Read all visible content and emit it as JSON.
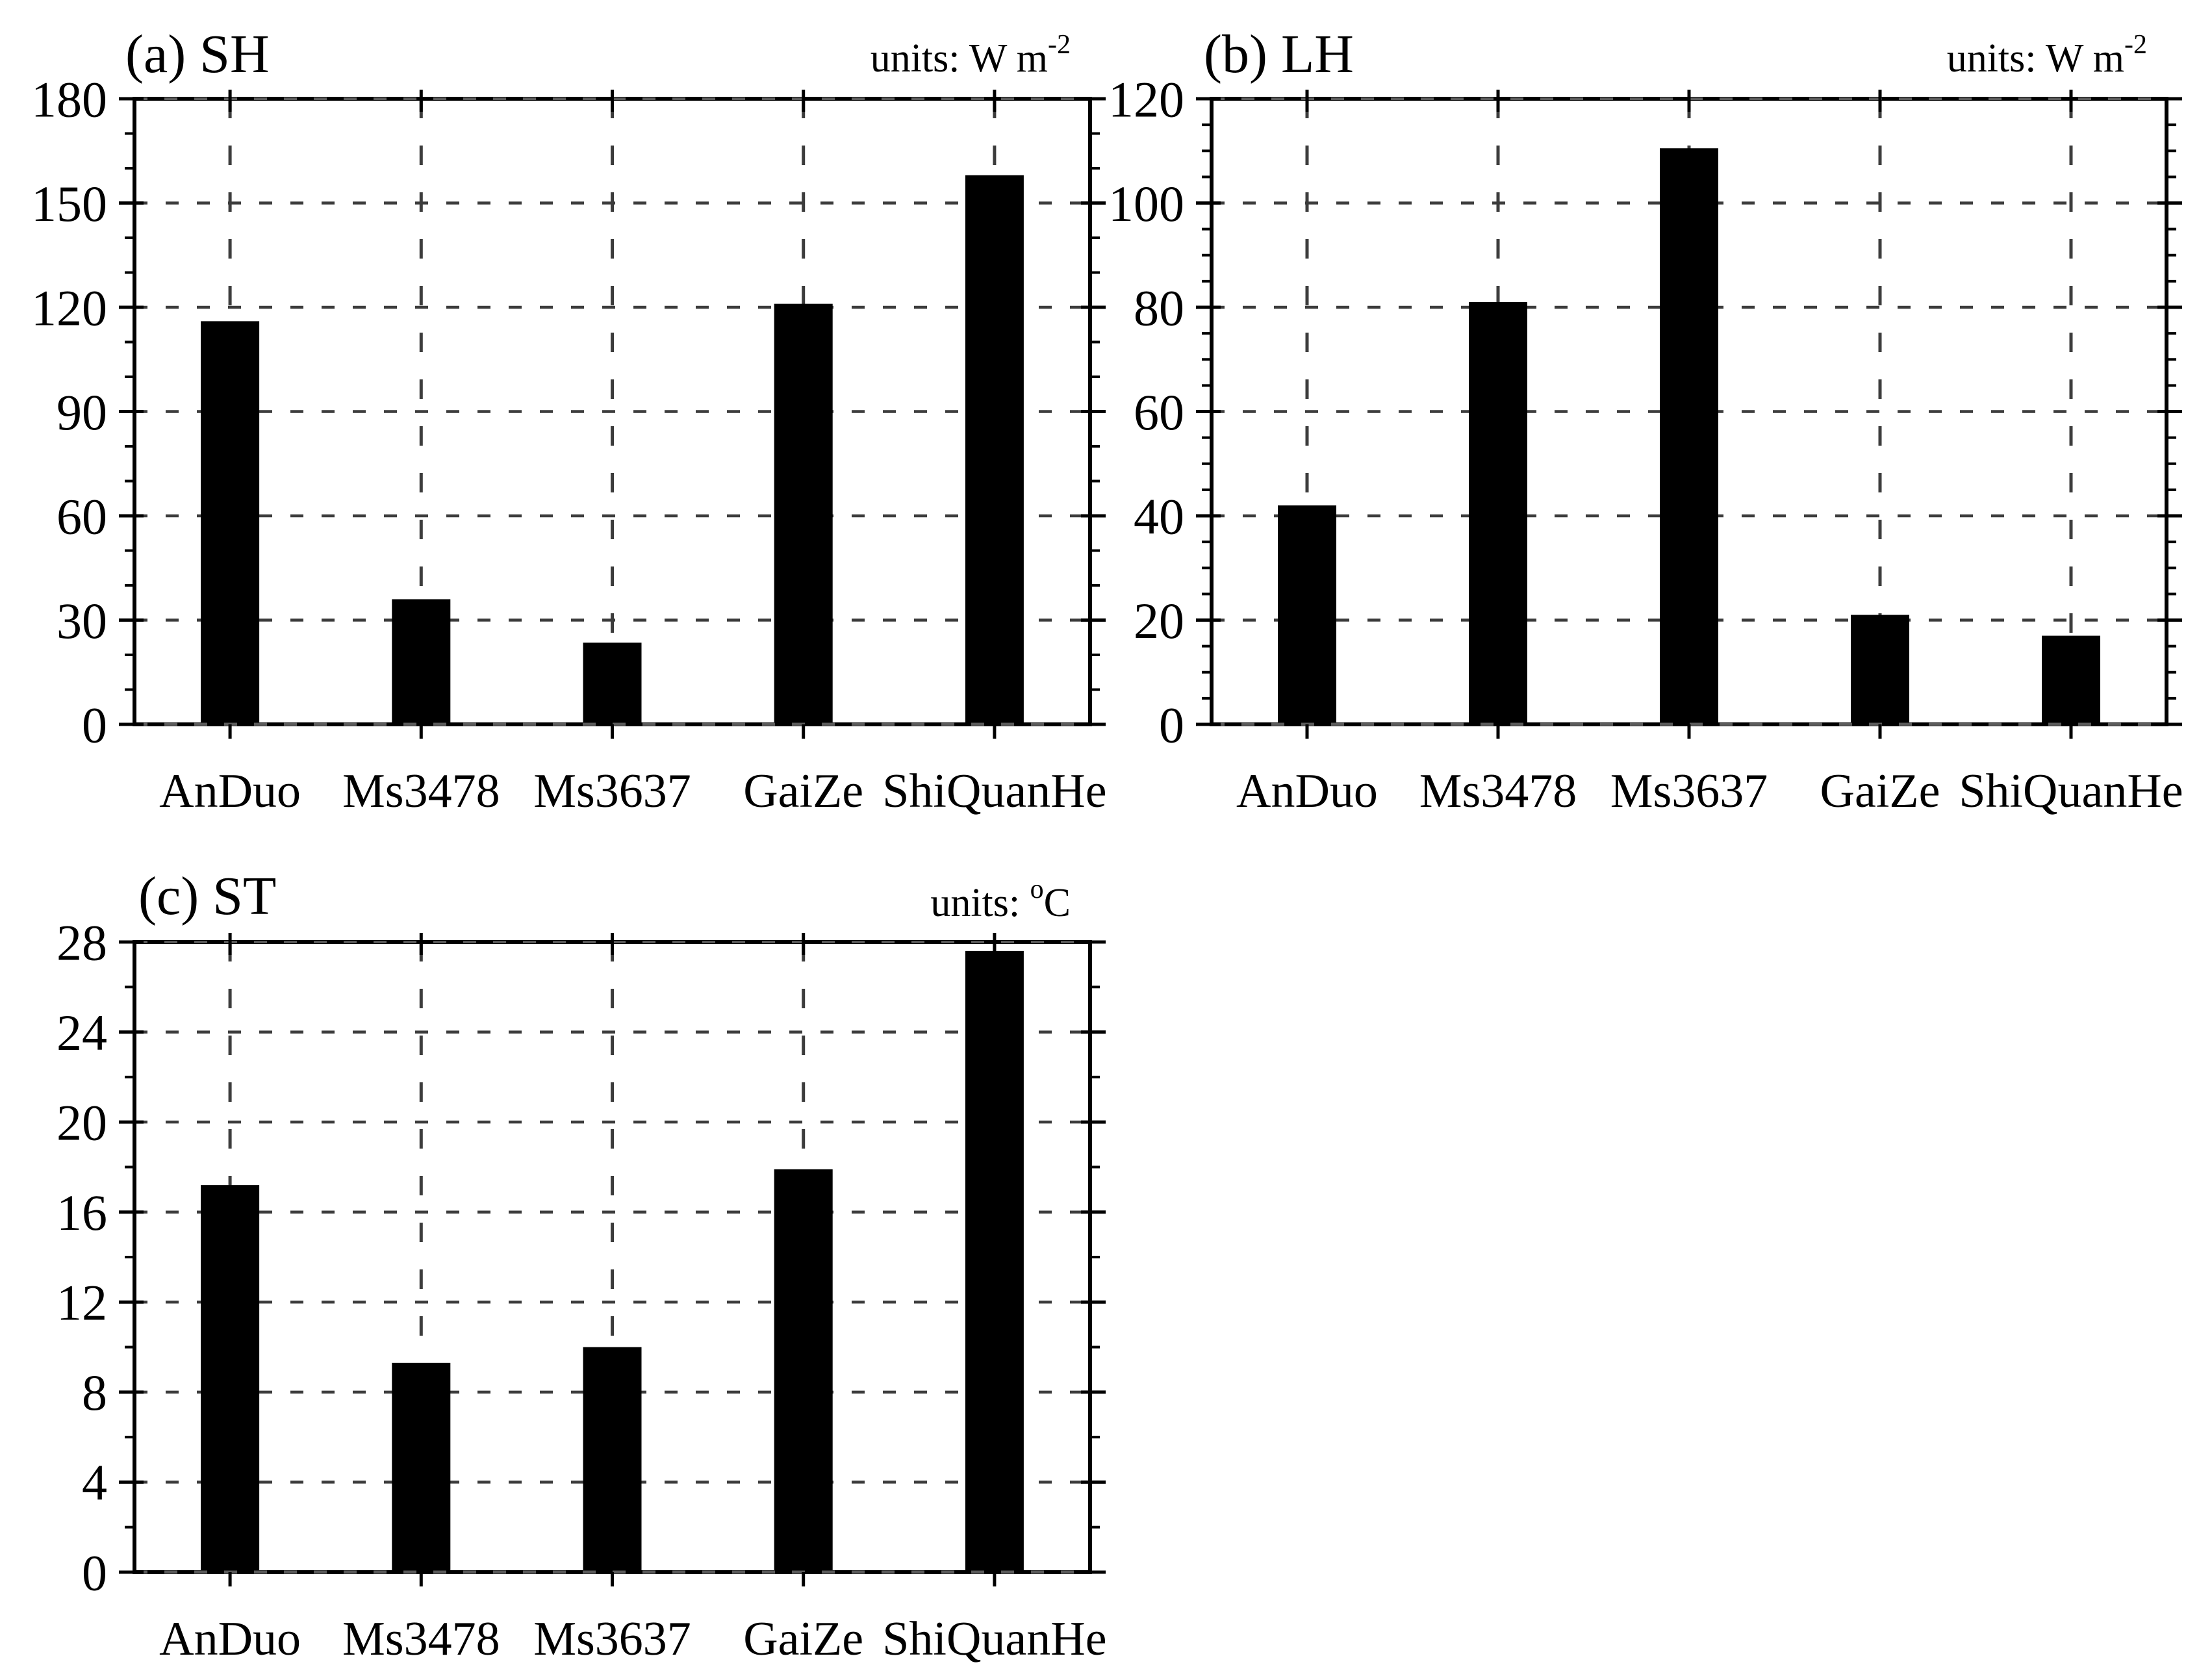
{
  "page": {
    "background": "#ffffff",
    "ink_color": "#000000",
    "bar_color": "#000000",
    "grid_color": "#3c3c3c",
    "axis_dash_color": "#5a5a5a"
  },
  "categories": [
    "AnDuo",
    "Ms3478",
    "Ms3637",
    "GaiZe",
    "ShiQuanHe"
  ],
  "chart_data": [
    {
      "id": "a",
      "type": "bar",
      "title": "(a) SH",
      "units_main": "units: W m",
      "units_sup": "-2",
      "units_tail": "",
      "xlabel": "",
      "ylabel": "",
      "categories": [
        "AnDuo",
        "Ms3478",
        "Ms3637",
        "GaiZe",
        "ShiQuanHe"
      ],
      "values": [
        116,
        36,
        23.5,
        121,
        158
      ],
      "ylim": [
        0,
        180
      ],
      "ytick_step": 30,
      "yminor_step": 10,
      "ytick_labels": [
        "0",
        "30",
        "60",
        "90",
        "120",
        "150",
        "180"
      ],
      "grid": true,
      "legend": "none"
    },
    {
      "id": "b",
      "type": "bar",
      "title": "(b) LH",
      "units_main": "units: W m",
      "units_sup": "-2",
      "units_tail": "",
      "xlabel": "",
      "ylabel": "",
      "categories": [
        "AnDuo",
        "Ms3478",
        "Ms3637",
        "GaiZe",
        "ShiQuanHe"
      ],
      "values": [
        42,
        81,
        110.5,
        21,
        17
      ],
      "ylim": [
        0,
        120
      ],
      "ytick_step": 20,
      "yminor_step": 5,
      "ytick_labels": [
        "0",
        "20",
        "40",
        "60",
        "80",
        "100",
        "120"
      ],
      "grid": true,
      "legend": "none"
    },
    {
      "id": "c",
      "type": "bar",
      "title": "(c) ST",
      "units_main": "units: ",
      "units_sup": "o",
      "units_tail": "C",
      "xlabel": "",
      "ylabel": "",
      "categories": [
        "AnDuo",
        "Ms3478",
        "Ms3637",
        "GaiZe",
        "ShiQuanHe"
      ],
      "values": [
        17.2,
        9.3,
        10,
        17.9,
        27.6
      ],
      "ylim": [
        0,
        28
      ],
      "ytick_step": 4,
      "yminor_step": 2,
      "ytick_labels": [
        "0",
        "4",
        "8",
        "12",
        "16",
        "20",
        "24",
        "28"
      ],
      "grid": true,
      "legend": "none"
    }
  ]
}
